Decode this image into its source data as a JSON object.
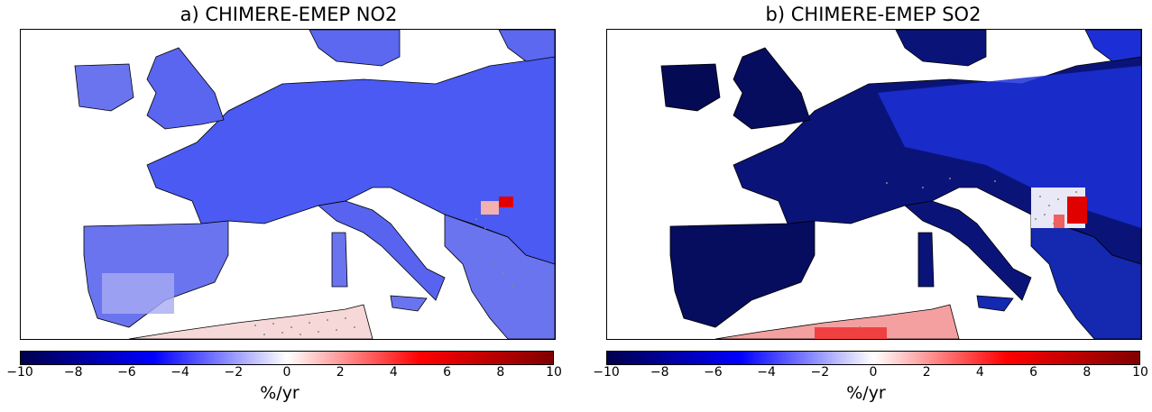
{
  "panels": [
    {
      "title": "a) CHIMERE-EMEP NO2",
      "colorbar": {
        "ticks": [
          "−10",
          "−8",
          "−6",
          "−4",
          "−2",
          "0",
          "2",
          "4",
          "6",
          "8",
          "10"
        ],
        "unit": "%/yr",
        "range": [
          -10,
          10
        ]
      },
      "colors": {
        "land_main": "#4a5af2",
        "land_light": "#7c84f0",
        "sea": "#ffffff",
        "africa": "#f7d8d8",
        "hotspot": "#e00000"
      }
    },
    {
      "title": "b) CHIMERE-EMEP SO2",
      "colorbar": {
        "ticks": [
          "−10",
          "−8",
          "−6",
          "−4",
          "−2",
          "0",
          "2",
          "4",
          "6",
          "8",
          "10"
        ],
        "unit": "%/yr",
        "range": [
          -10,
          10
        ]
      },
      "colors": {
        "land_main": "#050a6e",
        "land_light": "#1c2fd6",
        "sea": "#ffffff",
        "africa": "#f5a0a0",
        "hotspot": "#e00000"
      }
    }
  ]
}
